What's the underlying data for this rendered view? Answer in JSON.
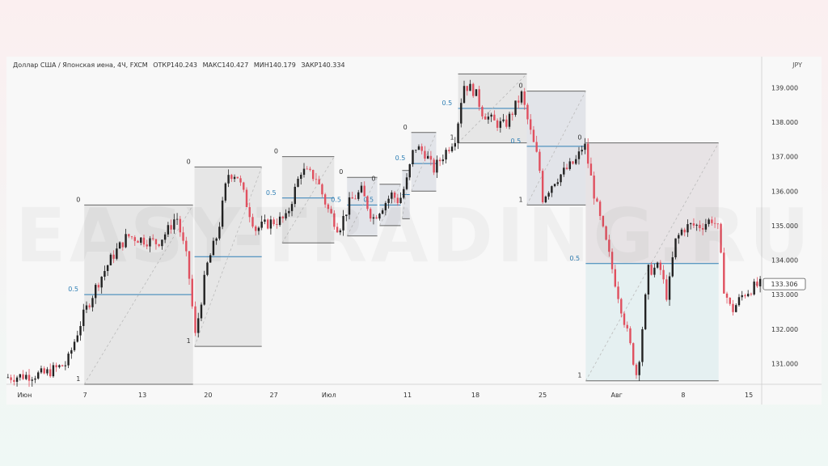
{
  "legend": {
    "symbol": "Доллар США / Японская иена, 4Ч, FXCM",
    "open": "ОТКР140.243",
    "high": "МАКС140.427",
    "low": "МИН140.179",
    "close": "ЗАКР140.334"
  },
  "currency": "JPY",
  "watermark": "EASY-TRADING.RU",
  "price_badge": "133.306",
  "colors": {
    "up": "#222222",
    "down": "#e0505f",
    "fib_line": "#2f7fb5",
    "fib_text": "#2f7fb5"
  },
  "chart_data": {
    "type": "candlestick",
    "title": "Доллар США / Японская иена, 4Ч, FXCM",
    "ylabel": "JPY",
    "ylim": [
      130.4,
      139.9
    ],
    "xlim": [
      0,
      100
    ],
    "yticks": [
      "139.000",
      "138.000",
      "137.000",
      "136.000",
      "135.000",
      "134.000",
      "133.000",
      "132.000",
      "131.000"
    ],
    "ytick_values": [
      139,
      138,
      137,
      136,
      135,
      134,
      133,
      132,
      131
    ],
    "xticks": [
      "Июн",
      "7",
      "13",
      "20",
      "27",
      "Июл",
      "11",
      "18",
      "25",
      "Авг",
      "8",
      "15"
    ],
    "xtick_values": [
      2.4,
      10.4,
      18.0,
      26.7,
      35.4,
      42.7,
      53.1,
      62.1,
      71.0,
      80.8,
      89.6,
      98.3
    ],
    "last_price": 133.306,
    "path": [
      [
        0,
        130.6
      ],
      [
        5,
        130.7
      ],
      [
        8,
        131.0
      ],
      [
        10,
        132.3
      ],
      [
        12,
        133.3
      ],
      [
        14,
        134.1
      ],
      [
        16,
        134.7
      ],
      [
        18,
        134.6
      ],
      [
        20,
        134.5
      ],
      [
        21.5,
        134.9
      ],
      [
        22.5,
        135.3
      ],
      [
        24,
        133.9
      ],
      [
        25,
        131.8
      ],
      [
        26.5,
        133.8
      ],
      [
        28,
        134.8
      ],
      [
        29.3,
        136.5
      ],
      [
        30.5,
        136.5
      ],
      [
        32,
        135.5
      ],
      [
        33,
        134.9
      ],
      [
        35,
        135.1
      ],
      [
        37,
        135.2
      ],
      [
        39,
        136.6
      ],
      [
        41,
        136.4
      ],
      [
        42.5,
        135.5
      ],
      [
        44,
        134.9
      ],
      [
        45.5,
        135.7
      ],
      [
        47,
        136.0
      ],
      [
        48.5,
        135.2
      ],
      [
        49.5,
        135.5
      ],
      [
        51,
        135.9
      ],
      [
        52,
        135.7
      ],
      [
        53,
        136.3
      ],
      [
        54,
        137.3
      ],
      [
        55.5,
        137.1
      ],
      [
        56.5,
        136.6
      ],
      [
        58,
        137.1
      ],
      [
        59.5,
        137.6
      ],
      [
        60.5,
        139.1
      ],
      [
        62,
        138.9
      ],
      [
        63,
        138.3
      ],
      [
        64.5,
        138.0
      ],
      [
        66,
        137.9
      ],
      [
        67,
        138.3
      ],
      [
        68.2,
        138.8
      ],
      [
        69.5,
        137.6
      ],
      [
        70.5,
        136.8
      ],
      [
        71,
        135.8
      ],
      [
        72.5,
        136.3
      ],
      [
        74,
        136.6
      ],
      [
        75.5,
        136.9
      ],
      [
        76.5,
        137.4
      ],
      [
        78,
        135.7
      ],
      [
        79.5,
        134.4
      ],
      [
        81,
        133.0
      ],
      [
        82.5,
        131.6
      ],
      [
        83.5,
        130.6
      ],
      [
        85,
        133.7
      ],
      [
        86.5,
        133.8
      ],
      [
        87.5,
        132.9
      ],
      [
        88.5,
        134.5
      ],
      [
        89.5,
        134.9
      ],
      [
        90.5,
        135.0
      ],
      [
        92,
        135.0
      ],
      [
        93.5,
        135.2
      ],
      [
        94.2,
        134.9
      ],
      [
        95,
        133.2
      ],
      [
        96,
        132.5
      ],
      [
        97.5,
        133.0
      ],
      [
        98.8,
        133.2
      ],
      [
        100,
        133.3
      ]
    ],
    "fib_boxes": [
      {
        "x0": 10.3,
        "x1": 24.7,
        "p0": 135.6,
        "p1": 130.4,
        "p05": 133.0,
        "l0": "0",
        "l1": "1",
        "l05": "0.5",
        "fill": "down"
      },
      {
        "x0": 24.9,
        "x1": 33.8,
        "p0": 136.7,
        "p1": 131.5,
        "p05": 134.1,
        "l0": "0",
        "l1": "1",
        "l05": "",
        "fill": "down"
      },
      {
        "x0": 36.5,
        "x1": 43.4,
        "p0": 137.0,
        "p1": 134.5,
        "p05": 135.8,
        "l0": "0",
        "l1": "",
        "l05": "0.5",
        "fill": "down"
      },
      {
        "x0": 45.1,
        "x1": 49.1,
        "p0": 136.4,
        "p1": 134.7,
        "p05": 135.6,
        "l0": "0",
        "l1": "",
        "l05": "0.5",
        "fill": "up"
      },
      {
        "x0": 49.4,
        "x1": 52.2,
        "p0": 136.2,
        "p1": 135.0,
        "p05": 135.6,
        "l0": "0",
        "l1": "",
        "l05": "0.5",
        "fill": "up"
      },
      {
        "x0": 52.4,
        "x1": 53.4,
        "p0": 136.6,
        "p1": 135.2,
        "p05": 135.9,
        "l0": "",
        "l1": "",
        "l05": "",
        "fill": "up"
      },
      {
        "x0": 53.6,
        "x1": 56.9,
        "p0": 137.7,
        "p1": 136.0,
        "p05": 136.8,
        "l0": "0",
        "l1": "",
        "l05": "0.5",
        "fill": "up"
      },
      {
        "x0": 59.8,
        "x1": 68.9,
        "p0": 139.4,
        "p1": 137.4,
        "p05": 138.4,
        "l0": "",
        "l1": "1",
        "l05": "0.5",
        "fill": "down"
      },
      {
        "x0": 68.9,
        "x1": 76.7,
        "p0": 138.9,
        "p1": 135.6,
        "p05": 137.3,
        "l0": "0",
        "l1": "1",
        "l05": "0.5",
        "fill": "up"
      },
      {
        "x0": 76.7,
        "x1": 94.3,
        "p0": 137.4,
        "p1": 130.5,
        "p05": 133.9,
        "l0": "0",
        "l1": "1",
        "l05": "0.5",
        "fill": "mixed"
      }
    ]
  }
}
